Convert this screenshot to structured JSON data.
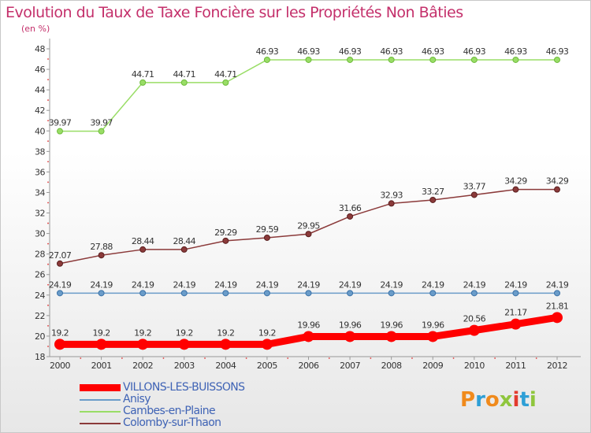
{
  "title": "Evolution du Taux de Taxe Foncière sur les Propriétés Non Bâties",
  "unit_label": "(en %)",
  "logo": {
    "letters": [
      "P",
      "r",
      "o",
      "x",
      "i",
      "t",
      "i"
    ],
    "colors": [
      "#f08a1c",
      "#2e9fd6",
      "#f08a1c",
      "#8fc63d",
      "#e23b2e",
      "#2e9fd6",
      "#8fc63d"
    ]
  },
  "chart_data": {
    "type": "line",
    "title": "Evolution du Taux de Taxe Foncière sur les Propriétés Non Bâties",
    "ylabel": "(en %)",
    "xlabel": "",
    "x": [
      "2000",
      "2001",
      "2002",
      "2003",
      "2004",
      "2005",
      "2006",
      "2007",
      "2008",
      "2009",
      "2010",
      "2011",
      "2012"
    ],
    "ylim": [
      18,
      48
    ],
    "yticks": [
      18,
      20,
      22,
      24,
      26,
      28,
      30,
      32,
      34,
      36,
      38,
      40,
      42,
      44,
      46,
      48
    ],
    "series": [
      {
        "name": "VILLONS-LES-BUISSONS",
        "color": "#ff0000",
        "width": 9,
        "marker": 7,
        "values": [
          19.2,
          19.2,
          19.2,
          19.2,
          19.2,
          19.2,
          19.96,
          19.96,
          19.96,
          19.96,
          20.56,
          21.17,
          21.81
        ],
        "labels": [
          "19.2",
          "19.2",
          "19.2",
          "19.2",
          "19.2",
          "19.2",
          "19.96",
          "19.96",
          "19.96",
          "19.96",
          "20.56",
          "21.17",
          "21.81"
        ]
      },
      {
        "name": "Anisy",
        "color": "#6a9cc9",
        "width": 1.5,
        "marker": 3.5,
        "values": [
          24.19,
          24.19,
          24.19,
          24.19,
          24.19,
          24.19,
          24.19,
          24.19,
          24.19,
          24.19,
          24.19,
          24.19,
          24.19
        ],
        "labels": [
          "24.19",
          "24.19",
          "24.19",
          "24.19",
          "24.19",
          "24.19",
          "24.19",
          "24.19",
          "24.19",
          "24.19",
          "24.19",
          "24.19",
          "24.19"
        ]
      },
      {
        "name": "Cambes-en-Plaine",
        "color": "#99dd66",
        "width": 1.5,
        "marker": 3.5,
        "values": [
          39.97,
          39.97,
          44.71,
          44.71,
          44.71,
          46.93,
          46.93,
          46.93,
          46.93,
          46.93,
          46.93,
          46.93,
          46.93
        ],
        "labels": [
          "39.97",
          "39.97",
          "44.71",
          "44.71",
          "44.71",
          "46.93",
          "46.93",
          "46.93",
          "46.93",
          "46.93",
          "46.93",
          "46.93",
          "46.93"
        ]
      },
      {
        "name": "Colomby-sur-Thaon",
        "color": "#8b3a3a",
        "width": 1.5,
        "marker": 3.5,
        "values": [
          27.07,
          27.88,
          28.44,
          28.44,
          29.29,
          29.59,
          29.95,
          31.66,
          32.93,
          33.27,
          33.77,
          34.29,
          34.29
        ],
        "labels": [
          "27.07",
          "27.88",
          "28.44",
          "28.44",
          "29.29",
          "29.59",
          "29.95",
          "31.66",
          "32.93",
          "33.27",
          "33.77",
          "34.29",
          "34.29"
        ]
      }
    ],
    "legend": "bottom-left",
    "grid": false
  }
}
